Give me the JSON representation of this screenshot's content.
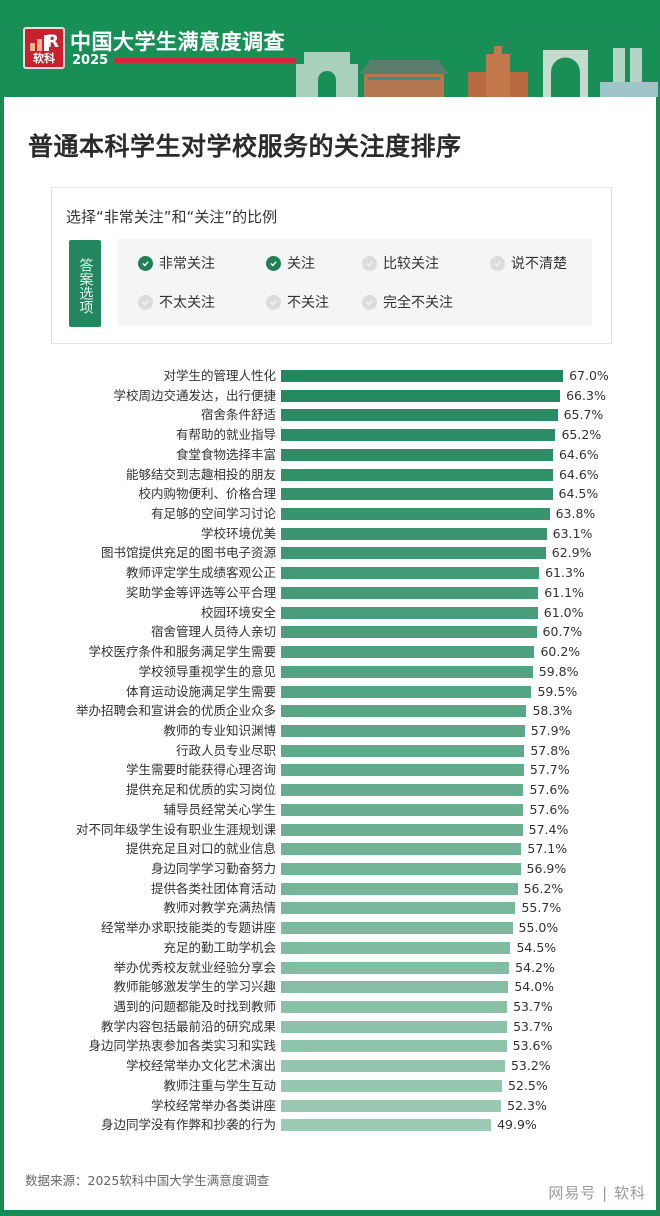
{
  "header": {
    "logo_text": "软科",
    "brand_title": "中国大学生满意度调查",
    "brand_year": "2025"
  },
  "page_title": "普通本科学生对学校服务的关注度排序",
  "legend": {
    "heading": "选择“非常关注”和“关注”的比例",
    "tag": "答案选项",
    "options": [
      {
        "label": "非常关注",
        "selected": true
      },
      {
        "label": "关注",
        "selected": true
      },
      {
        "label": "比较关注",
        "selected": false
      },
      {
        "label": "说不清楚",
        "selected": false
      },
      {
        "label": "不太关注",
        "selected": false
      },
      {
        "label": "不关注",
        "selected": false
      },
      {
        "label": "完全不关注",
        "selected": false
      }
    ]
  },
  "colors": {
    "brand_green": "#1a8a55",
    "bar_top": "#22875e",
    "bar_bottom": "#9ccbb5",
    "logo_red": "#c8202f"
  },
  "chart_data": {
    "type": "bar",
    "orientation": "horizontal",
    "title": "普通本科学生对学校服务的关注度排序",
    "subtitle": "选择“非常关注”和“关注”的比例",
    "xlabel": "",
    "ylabel": "",
    "unit": "%",
    "grid": false,
    "legend_position": "none",
    "categories": [
      "对学生的管理人性化",
      "学校周边交通发达，出行便捷",
      "宿舍条件舒适",
      "有帮助的就业指导",
      "食堂食物选择丰富",
      "能够结交到志趣相投的朋友",
      "校内购物便利、价格合理",
      "有足够的空间学习讨论",
      "学校环境优美",
      "图书馆提供充足的图书电子资源",
      "教师评定学生成绩客观公正",
      "奖助学金等评选等公平合理",
      "校园环境安全",
      "宿舍管理人员待人亲切",
      "学校医疗条件和服务满足学生需要",
      "学校领导重视学生的意见",
      "体育运动设施满足学生需要",
      "举办招聘会和宣讲会的优质企业众多",
      "教师的专业知识渊博",
      "行政人员专业尽职",
      "学生需要时能获得心理咨询",
      "提供充足和优质的实习岗位",
      "辅导员经常关心学生",
      "对不同年级学生设有职业生涯规划课",
      "提供充足且对口的就业信息",
      "身边同学学习勤奋努力",
      "提供各类社团体育活动",
      "教师对教学充满热情",
      "经常举办求职技能类的专题讲座",
      "充足的勤工助学机会",
      "举办优秀校友就业经验分享会",
      "教师能够激发学生的学习兴趣",
      "遇到的问题都能及时找到教师",
      "教学内容包括最前沿的研究成果",
      "身边同学热衷参加各类实习和实践",
      "学校经常举办文化艺术演出",
      "教师注重与学生互动",
      "学校经常举办各类讲座",
      "身边同学没有作弊和抄袭的行为"
    ],
    "values": [
      67.0,
      66.3,
      65.7,
      65.2,
      64.6,
      64.6,
      64.5,
      63.8,
      63.1,
      62.9,
      61.3,
      61.1,
      61.0,
      60.7,
      60.2,
      59.8,
      59.5,
      58.3,
      57.9,
      57.8,
      57.7,
      57.6,
      57.6,
      57.4,
      57.1,
      56.9,
      56.2,
      55.7,
      55.0,
      54.5,
      54.2,
      54.0,
      53.7,
      53.7,
      53.6,
      53.2,
      52.5,
      52.3,
      49.9
    ],
    "value_labels": [
      "67.0%",
      "66.3%",
      "65.7%",
      "65.2%",
      "64.6%",
      "64.6%",
      "64.5%",
      "63.8%",
      "63.1%",
      "62.9%",
      "61.3%",
      "61.1%",
      "61.0%",
      "60.7%",
      "60.2%",
      "59.8%",
      "59.5%",
      "58.3%",
      "57.9%",
      "57.8%",
      "57.7%",
      "57.6%",
      "57.6%",
      "57.4%",
      "57.1%",
      "56.9%",
      "56.2%",
      "55.7%",
      "55.0%",
      "54.5%",
      "54.2%",
      "54.0%",
      "53.7%",
      "53.7%",
      "53.6%",
      "53.2%",
      "52.5%",
      "52.3%",
      "49.9%"
    ]
  },
  "footer": {
    "source": "数据来源：2025软科中国大学生满意度调查",
    "watermark": "网易号 | 软科"
  }
}
